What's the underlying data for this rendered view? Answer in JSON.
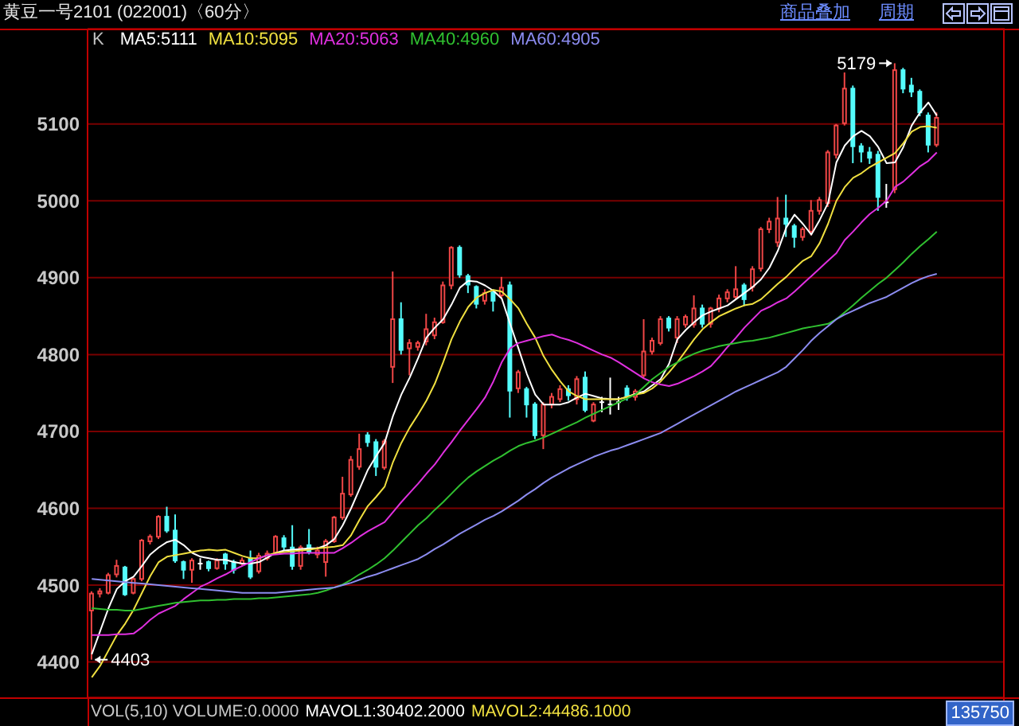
{
  "chart_data": {
    "type": "candlestick",
    "title": "黄豆一号2101 (022001)〈60分〉",
    "legend_title": "K",
    "legend": "top left",
    "grid": "y",
    "tick_labels": "y",
    "ylim": [
      4354,
      5224
    ],
    "yticks": [
      4400,
      4500,
      4600,
      4700,
      4800,
      4900,
      5000,
      5100
    ],
    "categories": [
      null,
      null,
      null,
      null,
      null,
      null,
      null,
      null,
      null,
      null,
      null,
      null,
      null,
      null,
      null,
      null,
      null,
      null,
      null,
      null,
      null,
      null,
      null,
      null,
      null,
      null,
      null,
      null,
      null,
      null,
      null,
      null,
      null,
      null,
      null,
      null,
      null,
      null,
      null,
      null,
      null,
      null,
      null,
      null,
      null,
      null,
      null,
      null,
      null,
      null,
      null,
      null,
      null,
      null,
      null,
      null,
      null,
      null,
      null,
      null,
      null,
      null,
      null,
      null,
      null,
      null,
      null,
      null,
      null,
      null,
      null,
      null,
      null,
      null,
      null,
      null,
      null,
      null,
      null,
      null,
      null,
      null,
      null,
      null,
      null,
      null,
      null,
      null,
      null,
      null,
      null,
      null,
      null,
      null,
      null,
      null,
      null,
      null,
      null,
      null,
      null,
      null
    ],
    "ohlc": [
      [
        4467,
        4492,
        4403,
        4489
      ],
      [
        4489,
        4496,
        4484,
        4492
      ],
      [
        4490,
        4516,
        4488,
        4513
      ],
      [
        4514,
        4533,
        4510,
        4525
      ],
      [
        4523,
        4525,
        4486,
        4488
      ],
      [
        4490,
        4510,
        4488,
        4508
      ],
      [
        4508,
        4560,
        4505,
        4558
      ],
      [
        4557,
        4566,
        4553,
        4563
      ],
      [
        4563,
        4591,
        4560,
        4589
      ],
      [
        4589,
        4602,
        4568,
        4571
      ],
      [
        4571,
        4592,
        4529,
        4532
      ],
      [
        4530,
        4532,
        4508,
        4520
      ],
      [
        4520,
        4535,
        4503,
        4532
      ],
      [
        4528,
        4535,
        4520,
        4528
      ],
      [
        4530,
        4532,
        4518,
        4522
      ],
      [
        4522,
        4535,
        4520,
        4532
      ],
      [
        4540,
        4542,
        4520,
        4528
      ],
      [
        4530,
        4533,
        4515,
        4520
      ],
      [
        4528,
        4536,
        4525,
        4532
      ],
      [
        4535,
        4545,
        4508,
        4511
      ],
      [
        4518,
        4542,
        4515,
        4538
      ],
      [
        4535,
        4545,
        4532,
        4541
      ],
      [
        4542,
        4565,
        4540,
        4563
      ],
      [
        4561,
        4565,
        4545,
        4550
      ],
      [
        4549,
        4578,
        4520,
        4525
      ],
      [
        4525,
        4552,
        4520,
        4549
      ],
      [
        4552,
        4573,
        4540,
        4543
      ],
      [
        4540,
        4550,
        4535,
        4545
      ],
      [
        4530,
        4560,
        4511,
        4557
      ],
      [
        4557,
        4590,
        4555,
        4588
      ],
      [
        4588,
        4641,
        4585,
        4619
      ],
      [
        4618,
        4668,
        4615,
        4663
      ],
      [
        4654,
        4697,
        4650,
        4677
      ],
      [
        4695,
        4699,
        4680,
        4686
      ],
      [
        4686,
        4690,
        4642,
        4654
      ],
      [
        4653,
        4690,
        4650,
        4687
      ],
      [
        4784,
        4908,
        4763,
        4846
      ],
      [
        4846,
        4868,
        4800,
        4806
      ],
      [
        4808,
        4820,
        4773,
        4815
      ],
      [
        4810,
        4818,
        4805,
        4815
      ],
      [
        4817,
        4853,
        4812,
        4833
      ],
      [
        4825,
        4848,
        4820,
        4842
      ],
      [
        4842,
        4895,
        4840,
        4890
      ],
      [
        4890,
        4941,
        4885,
        4939
      ],
      [
        4939,
        4942,
        4900,
        4904
      ],
      [
        4902,
        4905,
        4880,
        4891
      ],
      [
        4888,
        4890,
        4860,
        4866
      ],
      [
        4870,
        4885,
        4865,
        4880
      ],
      [
        4881,
        4885,
        4856,
        4870
      ],
      [
        4877,
        4901,
        4872,
        4887
      ],
      [
        4890,
        4895,
        4718,
        4753
      ],
      [
        4756,
        4780,
        4750,
        4777
      ],
      [
        4755,
        4758,
        4718,
        4735
      ],
      [
        4735,
        4738,
        4690,
        4695
      ],
      [
        4695,
        4738,
        4677,
        4735
      ],
      [
        4735,
        4750,
        4730,
        4745
      ],
      [
        4742,
        4760,
        4738,
        4755
      ],
      [
        4755,
        4760,
        4740,
        4747
      ],
      [
        4742,
        4772,
        4735,
        4768
      ],
      [
        4770,
        4778,
        4725,
        4728
      ],
      [
        4714,
        4738,
        4712,
        4735
      ],
      [
        4738,
        4745,
        4725,
        4738
      ],
      [
        4735,
        4770,
        4722,
        4735
      ],
      [
        4738,
        4745,
        4728,
        4738
      ],
      [
        4756,
        4760,
        4740,
        4746
      ],
      [
        4745,
        4755,
        4740,
        4752
      ],
      [
        4773,
        4846,
        4770,
        4804
      ],
      [
        4804,
        4822,
        4800,
        4818
      ],
      [
        4815,
        4850,
        4812,
        4846
      ],
      [
        4847,
        4850,
        4830,
        4835
      ],
      [
        4822,
        4850,
        4815,
        4846
      ],
      [
        4839,
        4852,
        4835,
        4849
      ],
      [
        4839,
        4877,
        4835,
        4860
      ],
      [
        4860,
        4865,
        4835,
        4840
      ],
      [
        4840,
        4862,
        4835,
        4860
      ],
      [
        4860,
        4878,
        4855,
        4873
      ],
      [
        4873,
        4885,
        4868,
        4881
      ],
      [
        4875,
        4915,
        4872,
        4885
      ],
      [
        4890,
        4893,
        4863,
        4872
      ],
      [
        4888,
        4915,
        4882,
        4911
      ],
      [
        4912,
        4966,
        4908,
        4963
      ],
      [
        4963,
        4978,
        4958,
        4973
      ],
      [
        4946,
        5005,
        4940,
        4977
      ],
      [
        4977,
        5008,
        4953,
        4970
      ],
      [
        4967,
        4970,
        4939,
        4953
      ],
      [
        4953,
        4966,
        4948,
        4963
      ],
      [
        4960,
        5001,
        4955,
        4987
      ],
      [
        4987,
        5005,
        4982,
        5001
      ],
      [
        4997,
        5066,
        4992,
        5063
      ],
      [
        5060,
        5100,
        5055,
        5098
      ],
      [
        5101,
        5167,
        5098,
        5146
      ],
      [
        5146,
        5150,
        5049,
        5071
      ],
      [
        5071,
        5075,
        5050,
        5064
      ],
      [
        5063,
        5070,
        5048,
        5056
      ],
      [
        5060,
        5065,
        4987,
        5005
      ],
      [
        4998,
        5022,
        4991,
        4998
      ],
      [
        5015,
        5179,
        5010,
        5170
      ],
      [
        5170,
        5173,
        5140,
        5146
      ],
      [
        5150,
        5160,
        5135,
        5142
      ],
      [
        5142,
        5145,
        5110,
        5115
      ],
      [
        5111,
        5115,
        5063,
        5073
      ],
      [
        5073,
        5115,
        5070,
        5108
      ]
    ],
    "colors": [
      "#f04646",
      "#f04646",
      "#f04646",
      "#f04646",
      "#54fcfc",
      "#f04646",
      "#f04646",
      "#f04646",
      "#f04646",
      "#54fcfc",
      "#54fcfc",
      "#54fcfc",
      "#f04646",
      "#ffffff",
      "#54fcfc",
      "#f04646",
      "#54fcfc",
      "#54fcfc",
      "#f04646",
      "#54fcfc",
      "#f04646",
      "#f04646",
      "#f04646",
      "#54fcfc",
      "#54fcfc",
      "#f04646",
      "#54fcfc",
      "#f04646",
      "#f04646",
      "#f04646",
      "#f04646",
      "#f04646",
      "#f04646",
      "#54fcfc",
      "#54fcfc",
      "#f04646",
      "#f04646",
      "#54fcfc",
      "#f04646",
      "#f04646",
      "#f04646",
      "#f04646",
      "#f04646",
      "#f04646",
      "#54fcfc",
      "#54fcfc",
      "#54fcfc",
      "#f04646",
      "#54fcfc",
      "#f04646",
      "#54fcfc",
      "#f04646",
      "#54fcfc",
      "#54fcfc",
      "#f04646",
      "#f04646",
      "#f04646",
      "#54fcfc",
      "#f04646",
      "#54fcfc",
      "#f04646",
      "#ffffff",
      "#ffffff",
      "#ffffff",
      "#54fcfc",
      "#f04646",
      "#f04646",
      "#f04646",
      "#f04646",
      "#54fcfc",
      "#f04646",
      "#f04646",
      "#f04646",
      "#54fcfc",
      "#f04646",
      "#f04646",
      "#f04646",
      "#f04646",
      "#54fcfc",
      "#f04646",
      "#f04646",
      "#f04646",
      "#f04646",
      "#54fcfc",
      "#54fcfc",
      "#f04646",
      "#f04646",
      "#f04646",
      "#f04646",
      "#f04646",
      "#f04646",
      "#54fcfc",
      "#54fcfc",
      "#54fcfc",
      "#54fcfc",
      "#ffffff",
      "#f04646",
      "#54fcfc",
      "#54fcfc",
      "#54fcfc",
      "#54fcfc",
      "#f04646"
    ],
    "series": [
      {
        "name": "MA5:5111",
        "type": "line",
        "color": "#ffffff",
        "values": [
          4410,
          4440,
          4470,
          4495,
          4505,
          4511,
          4525,
          4540,
          4549,
          4556,
          4559,
          4552,
          4542,
          4537,
          4535,
          4533,
          4533,
          4530,
          4528,
          4528,
          4530,
          4536,
          4542,
          4545,
          4546,
          4547,
          4548,
          4548,
          4552,
          4560,
          4578,
          4600,
          4625,
          4650,
          4668,
          4685,
          4720,
          4748,
          4770,
          4795,
          4822,
          4835,
          4846,
          4865,
          4887,
          4896,
          4895,
          4890,
          4883,
          4873,
          4840,
          4808,
          4775,
          4748,
          4735,
          4735,
          4735,
          4738,
          4744,
          4749,
          4746,
          4743,
          4742,
          4742,
          4745,
          4749,
          4752,
          4760,
          4768,
          4788,
          4820,
          4832,
          4842,
          4851,
          4856,
          4860,
          4864,
          4872,
          4880,
          4888,
          4898,
          4913,
          4935,
          4965,
          4982,
          4970,
          4956,
          4975,
          4997,
          5050,
          5072,
          5084,
          5091,
          5084,
          5070,
          5049,
          5050,
          5070,
          5098,
          5115,
          5128,
          5111
        ]
      },
      {
        "name": "MA10:5095",
        "type": "line",
        "color": "#f0e040",
        "values": [
          4380,
          4395,
          4415,
          4435,
          4450,
          4468,
          4490,
          4512,
          4530,
          4537,
          4539,
          4541,
          4543,
          4545,
          4546,
          4545,
          4546,
          4542,
          4538,
          4535,
          4535,
          4539,
          4542,
          4543,
          4544,
          4545,
          4546,
          4548,
          4549,
          4550,
          4552,
          4565,
          4585,
          4603,
          4615,
          4628,
          4660,
          4685,
          4705,
          4722,
          4740,
          4762,
          4790,
          4820,
          4843,
          4862,
          4874,
          4880,
          4884,
          4882,
          4872,
          4860,
          4840,
          4822,
          4798,
          4780,
          4765,
          4752,
          4746,
          4742,
          4742,
          4742,
          4742,
          4742,
          4745,
          4748,
          4750,
          4756,
          4765,
          4777,
          4790,
          4805,
          4820,
          4833,
          4842,
          4850,
          4855,
          4860,
          4864,
          4866,
          4872,
          4882,
          4892,
          4901,
          4912,
          4922,
          4928,
          4945,
          4970,
          5000,
          5018,
          5030,
          5036,
          5044,
          5050,
          5056,
          5062,
          5075,
          5090,
          5096,
          5097,
          5095
        ]
      },
      {
        "name": "MA20:5063",
        "type": "line",
        "color": "#e030e0",
        "values": [
          4435,
          4435,
          4435,
          4436,
          4436,
          4437,
          4445,
          4455,
          4463,
          4468,
          4473,
          4482,
          4490,
          4498,
          4503,
          4509,
          4514,
          4520,
          4525,
          4530,
          4535,
          4539,
          4540,
          4541,
          4541,
          4542,
          4542,
          4542,
          4542,
          4542,
          4548,
          4555,
          4563,
          4570,
          4576,
          4582,
          4595,
          4608,
          4620,
          4632,
          4645,
          4657,
          4672,
          4686,
          4701,
          4715,
          4729,
          4744,
          4765,
          4790,
          4808,
          4815,
          4818,
          4821,
          4824,
          4826,
          4822,
          4819,
          4815,
          4810,
          4805,
          4800,
          4796,
          4790,
          4783,
          4776,
          4769,
          4764,
          4761,
          4759,
          4762,
          4767,
          4772,
          4778,
          4785,
          4797,
          4810,
          4822,
          4835,
          4846,
          4857,
          4862,
          4868,
          4873,
          4882,
          4892,
          4902,
          4912,
          4922,
          4932,
          4949,
          4960,
          4972,
          4983,
          4991,
          5000,
          5018,
          5025,
          5035,
          5045,
          5052,
          5063
        ]
      },
      {
        "name": "MA40:4960",
        "type": "line",
        "color": "#30c030",
        "values": [
          4470,
          4469,
          4468,
          4468,
          4467,
          4467,
          4469,
          4471,
          4473,
          4475,
          4477,
          4478,
          4479,
          4480,
          4480,
          4481,
          4481,
          4482,
          4482,
          4482,
          4483,
          4483,
          4484,
          4485,
          4486,
          4487,
          4488,
          4490,
          4493,
          4497,
          4501,
          4507,
          4514,
          4520,
          4527,
          4535,
          4545,
          4556,
          4567,
          4578,
          4587,
          4598,
          4608,
          4619,
          4630,
          4640,
          4648,
          4655,
          4662,
          4668,
          4675,
          4681,
          4685,
          4688,
          4692,
          4697,
          4702,
          4707,
          4712,
          4718,
          4723,
          4728,
          4733,
          4738,
          4743,
          4748,
          4758,
          4768,
          4776,
          4784,
          4790,
          4796,
          4801,
          4805,
          4808,
          4811,
          4813,
          4815,
          4817,
          4818,
          4820,
          4822,
          4825,
          4828,
          4831,
          4834,
          4836,
          4838,
          4840,
          4846,
          4855,
          4864,
          4874,
          4883,
          4892,
          4900,
          4910,
          4920,
          4931,
          4941,
          4950,
          4960
        ]
      },
      {
        "name": "MA60:4905",
        "type": "line",
        "color": "#8c8cf0",
        "values": [
          4508,
          4507,
          4506,
          4505,
          4504,
          4503,
          4502,
          4501,
          4500,
          4499,
          4498,
          4497,
          4496,
          4495,
          4494,
          4493,
          4492,
          4491,
          4490,
          4490,
          4490,
          4490,
          4490,
          4491,
          4492,
          4493,
          4494,
          4495,
          4496,
          4497,
          4500,
          4503,
          4507,
          4511,
          4514,
          4518,
          4522,
          4526,
          4530,
          4534,
          4540,
          4547,
          4553,
          4560,
          4567,
          4573,
          4579,
          4585,
          4590,
          4596,
          4603,
          4610,
          4618,
          4625,
          4633,
          4640,
          4646,
          4652,
          4657,
          4662,
          4667,
          4671,
          4675,
          4678,
          4682,
          4686,
          4690,
          4694,
          4698,
          4704,
          4710,
          4716,
          4722,
          4728,
          4734,
          4740,
          4746,
          4752,
          4757,
          4762,
          4767,
          4772,
          4777,
          4784,
          4795,
          4806,
          4818,
          4828,
          4837,
          4846,
          4852,
          4857,
          4862,
          4867,
          4871,
          4875,
          4881,
          4887,
          4893,
          4898,
          4902,
          4905
        ]
      }
    ],
    "annotations": [
      "商品叠加",
      "周期",
      "VOL(5,10) VOLUME:0.0000",
      "MAVOL1:30402.2000",
      "MAVOL2:44486.1000",
      "135750",
      "5179",
      "4403"
    ]
  }
}
